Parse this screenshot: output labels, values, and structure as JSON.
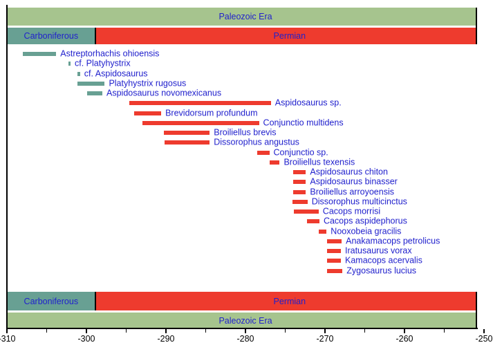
{
  "colors": {
    "era": "#a6c48e",
    "carboniferous": "#68a093",
    "permian": "#ee3b2e",
    "label_blue": "#2121cd",
    "axis_black": "#000000",
    "background": "#ffffff"
  },
  "chart_data": {
    "type": "bar",
    "subtype": "horizontal-taxon-range-timeline",
    "title": "",
    "xlabel": "",
    "ylabel": "",
    "x_axis": {
      "min": -310,
      "max": -250,
      "major_ticks": [
        -310,
        -300,
        -290,
        -280,
        -270,
        -260,
        -250
      ],
      "tick_labels": [
        "-310",
        "-300",
        "-290",
        "-280",
        "-270",
        "-260",
        "-250"
      ],
      "minor_ticks": [
        -305,
        -295,
        -285,
        -275,
        -265,
        -255
      ]
    },
    "era_bands": [
      {
        "label": "Paleozoic Era",
        "start": -310,
        "end": -250,
        "color_key": "era"
      }
    ],
    "period_bands": [
      {
        "label": "Carboniferous",
        "start": -310,
        "end": -298.9,
        "color_key": "carboniferous"
      },
      {
        "label": "Permian",
        "start": -298.9,
        "end": -250,
        "color_key": "permian"
      }
    ],
    "series": [
      {
        "name": "Astreptorhachis ohioensis",
        "start": -308.0,
        "end": -303.8,
        "color_key": "carboniferous"
      },
      {
        "name": "cf. Platyhystrix",
        "start": -302.3,
        "end": -302.0,
        "color_key": "carboniferous"
      },
      {
        "name": "cf. Aspidosaurus",
        "start": -301.1,
        "end": -300.8,
        "color_key": "carboniferous"
      },
      {
        "name": "Platyhystrix rugosus",
        "start": -301.1,
        "end": -297.7,
        "color_key": "carboniferous"
      },
      {
        "name": "Aspidosaurus novomexicanus",
        "start": -299.9,
        "end": -298.0,
        "color_key": "carboniferous"
      },
      {
        "name": "Aspidosaurus sp.",
        "start": -294.6,
        "end": -276.8,
        "color_key": "permian"
      },
      {
        "name": "Brevidorsum profundum",
        "start": -294.0,
        "end": -290.6,
        "color_key": "permian"
      },
      {
        "name": "Conjunctio multidens",
        "start": -293.0,
        "end": -278.3,
        "color_key": "permian"
      },
      {
        "name": "Broiliellus brevis",
        "start": -290.3,
        "end": -284.5,
        "color_key": "permian"
      },
      {
        "name": "Dissorophus angustus",
        "start": -290.2,
        "end": -284.5,
        "color_key": "permian"
      },
      {
        "name": "Conjunctio sp.",
        "start": -278.5,
        "end": -277.0,
        "color_key": "permian"
      },
      {
        "name": "Broiliellus texensis",
        "start": -277.0,
        "end": -275.7,
        "color_key": "permian"
      },
      {
        "name": "Aspidosaurus chiton",
        "start": -274.0,
        "end": -272.4,
        "color_key": "permian"
      },
      {
        "name": "Aspidosaurus binasser",
        "start": -274.0,
        "end": -272.4,
        "color_key": "permian"
      },
      {
        "name": "Broiliellus arroyoensis",
        "start": -274.0,
        "end": -272.4,
        "color_key": "permian"
      },
      {
        "name": "Dissorophus multicinctus",
        "start": -274.1,
        "end": -272.2,
        "color_key": "permian"
      },
      {
        "name": "Cacops morrisi",
        "start": -273.9,
        "end": -270.8,
        "color_key": "permian"
      },
      {
        "name": "Cacops aspidephorus",
        "start": -272.3,
        "end": -270.7,
        "color_key": "permian"
      },
      {
        "name": "Nooxobeia gracilis",
        "start": -270.8,
        "end": -269.8,
        "color_key": "permian"
      },
      {
        "name": "Anakamacops petrolicus",
        "start": -269.7,
        "end": -267.9,
        "color_key": "permian"
      },
      {
        "name": "Iratusaurus vorax",
        "start": -269.7,
        "end": -268.0,
        "color_key": "permian"
      },
      {
        "name": "Kamacops acervalis",
        "start": -269.7,
        "end": -268.0,
        "color_key": "permian"
      },
      {
        "name": "Zygosaurus lucius",
        "start": -269.7,
        "end": -267.8,
        "color_key": "permian"
      }
    ]
  }
}
